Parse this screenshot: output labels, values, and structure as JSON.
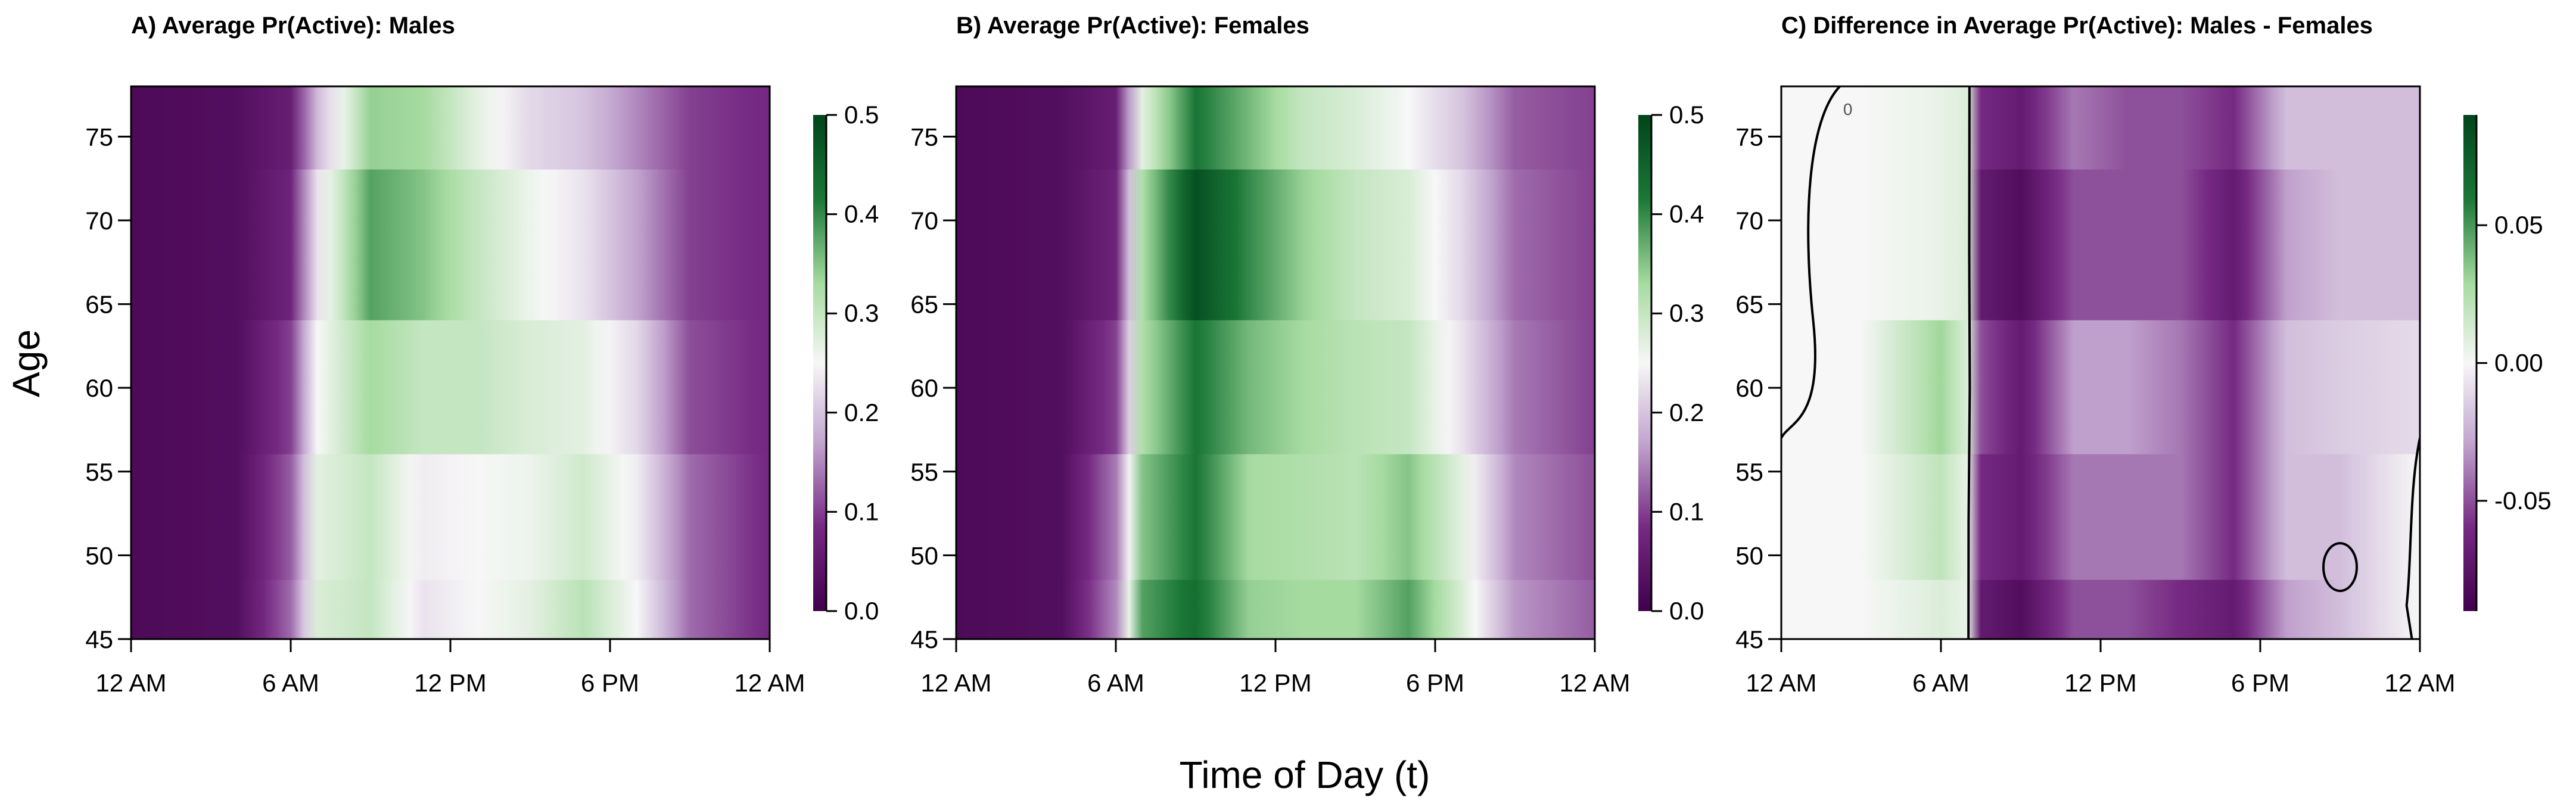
{
  "chart_data": [
    {
      "type": "heatmap",
      "title": "A) Average Pr(Active): Males",
      "xlabel": "Time of Day (t)",
      "ylabel": "Age",
      "x_range_hours": [
        0,
        24
      ],
      "y_range": [
        45,
        78
      ],
      "x_ticks": [
        {
          "value": 0,
          "label": "12 AM"
        },
        {
          "value": 6,
          "label": "6 AM"
        },
        {
          "value": 12,
          "label": "12 PM"
        },
        {
          "value": 18,
          "label": "6 PM"
        },
        {
          "value": 24,
          "label": "12 AM"
        }
      ],
      "y_ticks": [
        45,
        50,
        55,
        60,
        65,
        70,
        75
      ],
      "colorbar": {
        "min": 0.0,
        "max": 0.5,
        "ticks": [
          "0.0",
          "0.1",
          "0.2",
          "0.3",
          "0.4",
          "0.5"
        ],
        "palette": "purple-white-green"
      },
      "sample_rows": [
        {
          "age": 78,
          "t": [
            0,
            4,
            6,
            7,
            9,
            11,
            13,
            15,
            17,
            19,
            21,
            24
          ],
          "value": [
            0.02,
            0.03,
            0.06,
            0.19,
            0.34,
            0.33,
            0.27,
            0.22,
            0.2,
            0.15,
            0.1,
            0.08
          ]
        },
        {
          "age": 68,
          "t": [
            0,
            4,
            6,
            7,
            9,
            11,
            13,
            15,
            17,
            19,
            21,
            24
          ],
          "value": [
            0.02,
            0.03,
            0.07,
            0.23,
            0.38,
            0.35,
            0.3,
            0.26,
            0.23,
            0.17,
            0.1,
            0.08
          ]
        },
        {
          "age": 60,
          "t": [
            0,
            4,
            6,
            7,
            9,
            11,
            13,
            15,
            17,
            19,
            21,
            24
          ],
          "value": [
            0.02,
            0.03,
            0.1,
            0.25,
            0.33,
            0.3,
            0.3,
            0.28,
            0.27,
            0.22,
            0.11,
            0.08
          ]
        },
        {
          "age": 52,
          "t": [
            0,
            4,
            6,
            7,
            9,
            11,
            13,
            15,
            17,
            19,
            21,
            24
          ],
          "value": [
            0.02,
            0.03,
            0.12,
            0.27,
            0.3,
            0.24,
            0.25,
            0.26,
            0.29,
            0.24,
            0.13,
            0.08
          ]
        },
        {
          "age": 45,
          "t": [
            0,
            4,
            6,
            7,
            9,
            11,
            13,
            15,
            17,
            19,
            21,
            24
          ],
          "value": [
            0.02,
            0.03,
            0.13,
            0.28,
            0.3,
            0.23,
            0.25,
            0.27,
            0.31,
            0.25,
            0.13,
            0.08
          ]
        }
      ]
    },
    {
      "type": "heatmap",
      "title": "B) Average Pr(Active): Females",
      "xlabel": "Time of Day (t)",
      "ylabel": "Age",
      "x_range_hours": [
        0,
        24
      ],
      "y_range": [
        45,
        78
      ],
      "x_ticks": [
        {
          "value": 0,
          "label": "12 AM"
        },
        {
          "value": 6,
          "label": "6 AM"
        },
        {
          "value": 12,
          "label": "12 PM"
        },
        {
          "value": 18,
          "label": "6 PM"
        },
        {
          "value": 24,
          "label": "12 AM"
        }
      ],
      "y_ticks": [
        45,
        50,
        55,
        60,
        65,
        70,
        75
      ],
      "colorbar": {
        "min": 0.0,
        "max": 0.5,
        "ticks": [
          "0.0",
          "0.1",
          "0.2",
          "0.3",
          "0.4",
          "0.5"
        ],
        "palette": "purple-white-green"
      },
      "sample_rows": [
        {
          "age": 78,
          "t": [
            0,
            4,
            6,
            7,
            9,
            11,
            13,
            15,
            17,
            19,
            21,
            24
          ],
          "value": [
            0.02,
            0.03,
            0.06,
            0.27,
            0.42,
            0.36,
            0.3,
            0.28,
            0.25,
            0.2,
            0.12,
            0.1
          ]
        },
        {
          "age": 68,
          "t": [
            0,
            4,
            6,
            7,
            9,
            11,
            13,
            15,
            17,
            19,
            21,
            24
          ],
          "value": [
            0.02,
            0.03,
            0.07,
            0.32,
            0.48,
            0.4,
            0.34,
            0.3,
            0.28,
            0.22,
            0.13,
            0.1
          ]
        },
        {
          "age": 60,
          "t": [
            0,
            4,
            6,
            7,
            9,
            11,
            13,
            15,
            17,
            19,
            21,
            24
          ],
          "value": [
            0.02,
            0.03,
            0.1,
            0.32,
            0.42,
            0.36,
            0.33,
            0.31,
            0.3,
            0.23,
            0.14,
            0.1
          ]
        },
        {
          "age": 52,
          "t": [
            0,
            4,
            6,
            7,
            9,
            11,
            13,
            15,
            17,
            19,
            21,
            24
          ],
          "value": [
            0.02,
            0.03,
            0.14,
            0.35,
            0.42,
            0.33,
            0.32,
            0.31,
            0.35,
            0.27,
            0.15,
            0.11
          ]
        },
        {
          "age": 45,
          "t": [
            0,
            4,
            6,
            7,
            9,
            11,
            13,
            15,
            17,
            19,
            21,
            24
          ],
          "value": [
            0.02,
            0.03,
            0.15,
            0.38,
            0.43,
            0.34,
            0.33,
            0.33,
            0.38,
            0.28,
            0.16,
            0.12
          ]
        }
      ]
    },
    {
      "type": "heatmap",
      "title": "C) Difference in Average Pr(Active): Males - Females",
      "xlabel": "Time of Day (t)",
      "ylabel": "Age",
      "x_range_hours": [
        0,
        24
      ],
      "y_range": [
        45,
        78
      ],
      "x_ticks": [
        {
          "value": 0,
          "label": "12 AM"
        },
        {
          "value": 6,
          "label": "6 AM"
        },
        {
          "value": 12,
          "label": "12 PM"
        },
        {
          "value": 18,
          "label": "6 PM"
        },
        {
          "value": 24,
          "label": "12 AM"
        }
      ],
      "y_ticks": [
        45,
        50,
        55,
        60,
        65,
        70,
        75
      ],
      "colorbar": {
        "min": -0.09,
        "max": 0.09,
        "ticks": [
          "-0.05",
          "0.00",
          "0.05"
        ],
        "palette": "purple-white-green"
      },
      "contour_level": 0,
      "contour_labels": [
        "0"
      ],
      "sample_rows": [
        {
          "age": 78,
          "t": [
            0,
            3,
            6,
            7,
            7.5,
            9,
            11,
            13,
            15,
            17,
            19,
            21,
            24
          ],
          "value": [
            0.0,
            0.0,
            0.005,
            0.01,
            -0.06,
            -0.07,
            -0.04,
            -0.05,
            -0.05,
            -0.06,
            -0.02,
            -0.02,
            -0.02
          ]
        },
        {
          "age": 68,
          "t": [
            0,
            3,
            6,
            7,
            7.5,
            9,
            11,
            13,
            15,
            17,
            19,
            21,
            24
          ],
          "value": [
            0.0,
            0.0,
            0.005,
            0.01,
            -0.07,
            -0.08,
            -0.05,
            -0.05,
            -0.05,
            -0.07,
            -0.03,
            -0.02,
            -0.02
          ]
        },
        {
          "age": 60,
          "t": [
            0,
            3,
            6,
            7,
            7.5,
            9,
            11,
            13,
            15,
            17,
            19,
            21,
            24
          ],
          "value": [
            0.0,
            0.0,
            0.03,
            0.01,
            -0.05,
            -0.07,
            -0.03,
            -0.03,
            -0.04,
            -0.06,
            -0.02,
            -0.015,
            -0.01
          ]
        },
        {
          "age": 52,
          "t": [
            0,
            3,
            6,
            7,
            7.5,
            9,
            11,
            13,
            15,
            17,
            19,
            21,
            24
          ],
          "value": [
            0.0,
            0.0,
            0.02,
            0.005,
            -0.06,
            -0.07,
            -0.04,
            -0.04,
            -0.04,
            -0.06,
            -0.02,
            -0.02,
            0.0
          ]
        },
        {
          "age": 45,
          "t": [
            0,
            3,
            6,
            7,
            7.5,
            9,
            11,
            13,
            15,
            17,
            19,
            21,
            24
          ],
          "value": [
            0.0,
            0.0,
            0.01,
            0.005,
            -0.07,
            -0.08,
            -0.05,
            -0.05,
            -0.06,
            -0.07,
            -0.03,
            -0.02,
            0.0
          ]
        }
      ]
    }
  ],
  "colors": {
    "dark_purple": "#40004b",
    "purple": "#762a83",
    "light_purple": "#c2a5cf",
    "white": "#f7f7f7",
    "light_green": "#a6dba0",
    "green": "#1b7837",
    "dark_green": "#00441b"
  }
}
